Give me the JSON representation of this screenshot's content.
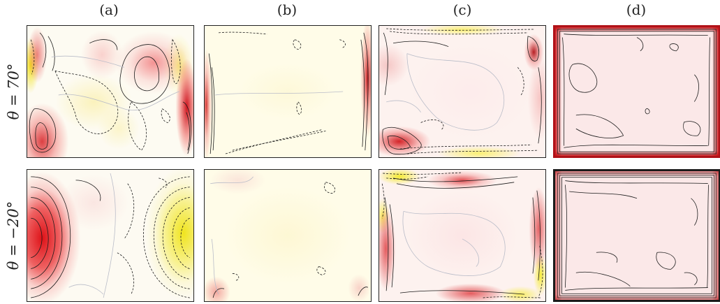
{
  "columns": [
    "(a)",
    "(b)",
    "(c)",
    "(d)"
  ],
  "rows": [
    "θ = 70°",
    "θ = −20°"
  ],
  "colors": {
    "positive": "#e8232a",
    "negative": "#f4ee2a",
    "neutral": "#fdfcf0",
    "contour": "#1a1a1a",
    "zero_contour": "#b9bcc8"
  }
}
